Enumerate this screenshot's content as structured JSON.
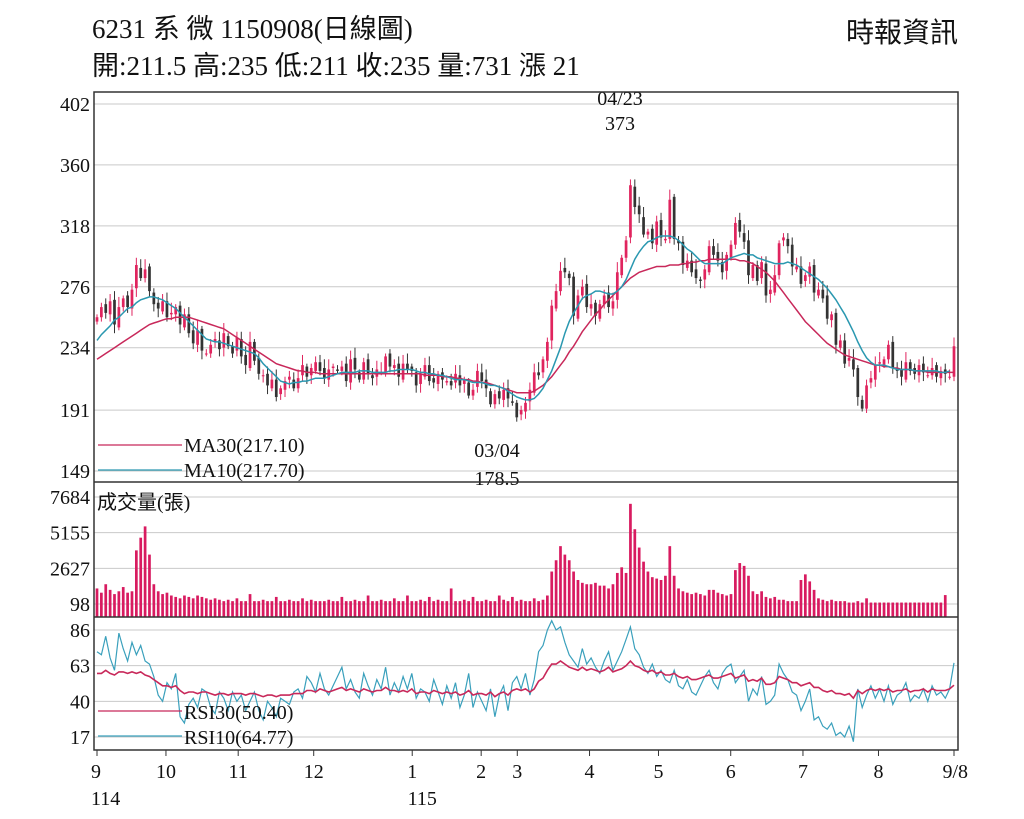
{
  "header": {
    "title": "6231 系 微 1150908(日線圖)",
    "source": "時報資訊",
    "ohlc": "開:211.5 高:235 低:211 收:235 量:731 漲 21"
  },
  "colors": {
    "up": "#e0245e",
    "down": "#333333",
    "ma30": "#c8285a",
    "ma10": "#2a98b0",
    "volume": "#d81b60",
    "rsi30": "#c8285a",
    "rsi10": "#3aa0bc",
    "grid": "#c9c9c9"
  },
  "chart_data": [
    {
      "type": "candlestick",
      "panel": "price",
      "ylim": [
        149,
        402
      ],
      "yticks": [
        "402",
        "360",
        "318",
        "276",
        "234",
        "191",
        "149"
      ],
      "grid": true,
      "annotations": [
        {
          "date": "04/23",
          "value": "373",
          "kind": "high"
        },
        {
          "date": "03/04",
          "value": "178.5",
          "kind": "low"
        }
      ],
      "legend": [
        {
          "label": "MA30(217.10)"
        },
        {
          "label": "MA10(217.70)"
        }
      ],
      "closes": [
        255,
        262,
        258,
        266,
        250,
        262,
        268,
        262,
        274,
        291,
        282,
        288,
        273,
        264,
        261,
        266,
        255,
        258,
        262,
        250,
        257,
        244,
        237,
        246,
        232,
        230,
        236,
        240,
        233,
        244,
        235,
        230,
        241,
        228,
        222,
        238,
        225,
        216,
        215,
        208,
        212,
        200,
        206,
        211,
        214,
        206,
        213,
        222,
        214,
        220,
        224,
        218,
        213,
        219,
        221,
        218,
        221,
        211,
        226,
        219,
        212,
        224,
        216,
        213,
        219,
        217,
        228,
        221,
        222,
        214,
        223,
        219,
        218,
        208,
        216,
        222,
        211,
        210,
        216,
        212,
        211,
        208,
        216,
        208,
        212,
        201,
        205,
        218,
        211,
        206,
        195,
        202,
        199,
        205,
        199,
        196,
        186,
        191,
        196,
        205,
        217,
        215,
        226,
        238,
        263,
        273,
        287,
        286,
        282,
        256,
        270,
        276,
        262,
        264,
        256,
        264,
        270,
        262,
        266,
        286,
        296,
        308,
        346,
        331,
        326,
        312,
        314,
        306,
        321,
        310,
        309,
        336,
        309,
        306,
        291,
        294,
        286,
        282,
        280,
        288,
        304,
        298,
        294,
        286,
        298,
        305,
        320,
        314,
        307,
        284,
        291,
        280,
        293,
        270,
        274,
        284,
        306,
        310,
        304,
        290,
        290,
        278,
        284,
        290,
        272,
        274,
        268,
        254,
        257,
        236,
        239,
        223,
        227,
        219,
        200,
        192,
        208,
        213,
        222,
        224,
        226,
        236,
        220,
        218,
        214,
        224,
        218,
        216,
        222,
        217,
        215,
        220,
        214,
        218,
        216,
        214,
        235
      ],
      "ma10": [
        239,
        243,
        246,
        249,
        253,
        255,
        258,
        261,
        262,
        265,
        267,
        268,
        269,
        269,
        268,
        267,
        265,
        263,
        261,
        258,
        255,
        252,
        249,
        246,
        243,
        240,
        239,
        238,
        238,
        237,
        236,
        235,
        234,
        233,
        232,
        231,
        230,
        227,
        223,
        220,
        217,
        214,
        211,
        210,
        209,
        210,
        210,
        211,
        211,
        212,
        213,
        213,
        213,
        214,
        215,
        216,
        217,
        217,
        217,
        217,
        218,
        218,
        218,
        217,
        217,
        217,
        217,
        218,
        218,
        219,
        219,
        219,
        219,
        218,
        217,
        217,
        216,
        216,
        215,
        215,
        214,
        213,
        212,
        212,
        212,
        211,
        210,
        210,
        210,
        209,
        208,
        208,
        207,
        206,
        204,
        202,
        200,
        199,
        198,
        198,
        199,
        202,
        206,
        212,
        218,
        226,
        234,
        244,
        252,
        258,
        263,
        268,
        270,
        271,
        273,
        273,
        272,
        271,
        271,
        273,
        276,
        281,
        288,
        295,
        300,
        304,
        307,
        308,
        310,
        311,
        311,
        311,
        310,
        308,
        305,
        302,
        300,
        297,
        294,
        292,
        292,
        292,
        292,
        292,
        294,
        296,
        297,
        298,
        299,
        298,
        298,
        296,
        295,
        294,
        293,
        292,
        292,
        292,
        293,
        292,
        291,
        289,
        287,
        285,
        283,
        281,
        278,
        275,
        271,
        267,
        262,
        257,
        251,
        245,
        238,
        232,
        227,
        224,
        222,
        222,
        222,
        221,
        220,
        219,
        219,
        219,
        219,
        218,
        218,
        218,
        218,
        218,
        218,
        217,
        217,
        218
      ],
      "ma30": [
        226,
        228,
        230,
        232,
        234,
        236,
        238,
        240,
        242,
        244,
        246,
        248,
        250,
        251,
        252,
        253,
        254,
        254,
        255,
        255,
        255,
        255,
        254,
        253,
        252,
        251,
        250,
        249,
        248,
        247,
        245,
        243,
        241,
        239,
        237,
        235,
        233,
        231,
        229,
        227,
        225,
        223,
        222,
        221,
        220,
        219,
        218,
        218,
        217,
        217,
        217,
        216,
        216,
        216,
        216,
        216,
        216,
        216,
        216,
        216,
        216,
        216,
        216,
        216,
        216,
        216,
        216,
        216,
        216,
        216,
        216,
        216,
        216,
        216,
        216,
        215,
        215,
        215,
        215,
        214,
        214,
        214,
        213,
        213,
        212,
        212,
        211,
        211,
        210,
        210,
        209,
        208,
        207,
        206,
        205,
        204,
        203,
        203,
        203,
        203,
        204,
        206,
        208,
        211,
        214,
        218,
        222,
        226,
        231,
        235,
        240,
        245,
        249,
        253,
        257,
        260,
        264,
        267,
        270,
        273,
        276,
        279,
        282,
        284,
        286,
        287,
        288,
        289,
        290,
        290,
        290,
        291,
        291,
        291,
        292,
        292,
        293,
        293,
        294,
        294,
        295,
        295,
        295,
        295,
        295,
        295,
        295,
        294,
        294,
        293,
        292,
        290,
        288,
        286,
        283,
        280,
        276,
        272,
        268,
        264,
        260,
        256,
        252,
        249,
        246,
        243,
        240,
        237,
        235,
        233,
        231,
        229,
        228,
        227,
        226,
        225,
        224,
        223,
        222,
        222,
        221,
        221,
        220,
        220,
        219,
        219,
        219,
        218,
        218,
        218,
        217,
        217,
        217,
        217,
        217,
        217,
        217
      ]
    },
    {
      "type": "bar",
      "panel": "volume",
      "label": "成交量(張)",
      "ylim": [
        0,
        7684
      ],
      "yticks": [
        "7684",
        "5155",
        "2627",
        "98"
      ],
      "values": [
        1200,
        900,
        1500,
        1100,
        800,
        1000,
        1300,
        900,
        1000,
        3900,
        4800,
        5600,
        3600,
        1500,
        1000,
        800,
        900,
        700,
        600,
        500,
        700,
        600,
        500,
        700,
        600,
        500,
        400,
        500,
        400,
        300,
        400,
        300,
        500,
        300,
        300,
        800,
        300,
        300,
        400,
        300,
        300,
        600,
        300,
        300,
        400,
        300,
        300,
        500,
        300,
        400,
        300,
        300,
        300,
        400,
        300,
        300,
        600,
        300,
        300,
        400,
        300,
        300,
        700,
        300,
        300,
        400,
        300,
        300,
        500,
        300,
        300,
        700,
        300,
        300,
        400,
        300,
        600,
        300,
        400,
        300,
        300,
        1200,
        300,
        300,
        400,
        300,
        600,
        300,
        300,
        400,
        300,
        300,
        700,
        400,
        300,
        600,
        300,
        400,
        300,
        300,
        500,
        300,
        400,
        700,
        2400,
        3200,
        4200,
        3600,
        3200,
        2400,
        1800,
        1600,
        1500,
        1500,
        1600,
        1400,
        1400,
        1200,
        1500,
        2300,
        2700,
        2300,
        7200,
        5400,
        4100,
        3100,
        2400,
        2000,
        1900,
        1800,
        2100,
        4200,
        2100,
        1200,
        1000,
        900,
        800,
        900,
        800,
        700,
        1100,
        1100,
        900,
        800,
        700,
        800,
        2500,
        3000,
        2800,
        2100,
        1000,
        800,
        1000,
        600,
        500,
        600,
        400,
        400,
        300,
        300,
        300,
        1800,
        2200,
        1700,
        1100,
        500,
        400,
        300,
        400,
        300,
        300,
        300,
        200,
        200,
        300,
        200,
        500,
        200,
        200,
        200,
        200,
        200,
        200,
        200,
        200,
        200,
        200,
        200,
        200,
        200,
        200,
        200,
        200,
        200,
        731
      ],
      "grid": true
    },
    {
      "type": "line",
      "panel": "rsi",
      "ylim": [
        10,
        90
      ],
      "yticks": [
        "86",
        "63",
        "40",
        "17"
      ],
      "legend": [
        {
          "label": "RSI30(50.40)"
        },
        {
          "label": "RSI10(64.77)"
        }
      ],
      "rsi10": [
        72,
        70,
        82,
        68,
        60,
        84,
        74,
        66,
        78,
        70,
        76,
        66,
        64,
        56,
        44,
        40,
        52,
        48,
        58,
        30,
        26,
        38,
        42,
        36,
        48,
        46,
        36,
        32,
        46,
        42,
        34,
        46,
        40,
        44,
        34,
        40,
        46,
        34,
        28,
        40,
        36,
        30,
        42,
        40,
        38,
        46,
        48,
        42,
        56,
        52,
        46,
        58,
        48,
        44,
        50,
        56,
        62,
        48,
        54,
        46,
        42,
        58,
        50,
        44,
        54,
        48,
        62,
        44,
        52,
        46,
        56,
        48,
        58,
        42,
        48,
        46,
        40,
        54,
        46,
        38,
        50,
        42,
        52,
        36,
        44,
        58,
        36,
        46,
        40,
        34,
        48,
        30,
        44,
        50,
        34,
        52,
        56,
        48,
        58,
        44,
        54,
        72,
        76,
        86,
        92,
        86,
        88,
        78,
        70,
        66,
        62,
        74,
        64,
        68,
        62,
        58,
        66,
        72,
        60,
        66,
        72,
        80,
        88,
        74,
        70,
        62,
        58,
        64,
        56,
        60,
        54,
        52,
        60,
        50,
        48,
        54,
        46,
        44,
        50,
        56,
        60,
        52,
        48,
        58,
        62,
        64,
        52,
        56,
        60,
        40,
        48,
        44,
        56,
        38,
        40,
        44,
        64,
        58,
        54,
        46,
        44,
        34,
        40,
        48,
        28,
        30,
        24,
        22,
        26,
        18,
        20,
        17,
        24,
        14,
        48,
        36,
        44,
        50,
        42,
        48,
        40,
        50,
        38,
        44,
        46,
        52,
        40,
        44,
        42,
        48,
        40,
        50,
        44,
        46,
        42,
        48,
        64.77
      ],
      "rsi30": [
        58,
        58,
        60,
        58,
        57,
        59,
        59,
        58,
        59,
        58,
        59,
        57,
        56,
        54,
        52,
        50,
        50,
        49,
        50,
        47,
        45,
        46,
        46,
        45,
        46,
        46,
        45,
        44,
        45,
        45,
        44,
        45,
        45,
        45,
        44,
        45,
        45,
        44,
        43,
        44,
        44,
        43,
        44,
        44,
        44,
        45,
        45,
        45,
        47,
        47,
        46,
        48,
        47,
        46,
        47,
        48,
        49,
        47,
        48,
        47,
        46,
        48,
        47,
        46,
        47,
        47,
        49,
        47,
        47,
        46,
        47,
        46,
        48,
        45,
        46,
        46,
        45,
        47,
        46,
        45,
        46,
        45,
        46,
        44,
        45,
        47,
        44,
        45,
        45,
        44,
        46,
        43,
        45,
        46,
        44,
        47,
        48,
        47,
        48,
        46,
        48,
        53,
        55,
        60,
        64,
        64,
        66,
        64,
        62,
        61,
        60,
        62,
        60,
        61,
        60,
        59,
        60,
        62,
        59,
        60,
        61,
        63,
        66,
        63,
        62,
        60,
        59,
        60,
        58,
        59,
        57,
        57,
        58,
        56,
        55,
        56,
        54,
        54,
        55,
        56,
        57,
        55,
        55,
        56,
        57,
        58,
        55,
        56,
        57,
        53,
        54,
        53,
        55,
        51,
        51,
        52,
        56,
        55,
        54,
        52,
        52,
        50,
        51,
        52,
        49,
        49,
        47,
        46,
        47,
        45,
        45,
        44,
        45,
        42,
        47,
        45,
        47,
        48,
        47,
        48,
        47,
        48,
        46,
        47,
        47,
        48,
        46,
        47,
        47,
        48,
        46,
        48,
        47,
        47,
        47,
        48,
        50.4
      ],
      "grid": true
    }
  ],
  "xaxis": {
    "ticks": [
      {
        "label": "9",
        "index": 0
      },
      {
        "label": "10",
        "index": 21
      },
      {
        "label": "11",
        "index": 43
      },
      {
        "label": "12",
        "index": 66
      },
      {
        "label": "1",
        "index": 96
      },
      {
        "label": "2",
        "index": 117
      },
      {
        "label": "3",
        "index": 128
      },
      {
        "label": "4",
        "index": 150
      },
      {
        "label": "5",
        "index": 171
      },
      {
        "label": "6",
        "index": 193
      },
      {
        "label": "7",
        "index": 215
      },
      {
        "label": "8",
        "index": 238
      },
      {
        "label": "9/8",
        "index": 261
      }
    ],
    "years": [
      {
        "label": "114",
        "index": 0
      },
      {
        "label": "115",
        "index": 96
      }
    ]
  }
}
